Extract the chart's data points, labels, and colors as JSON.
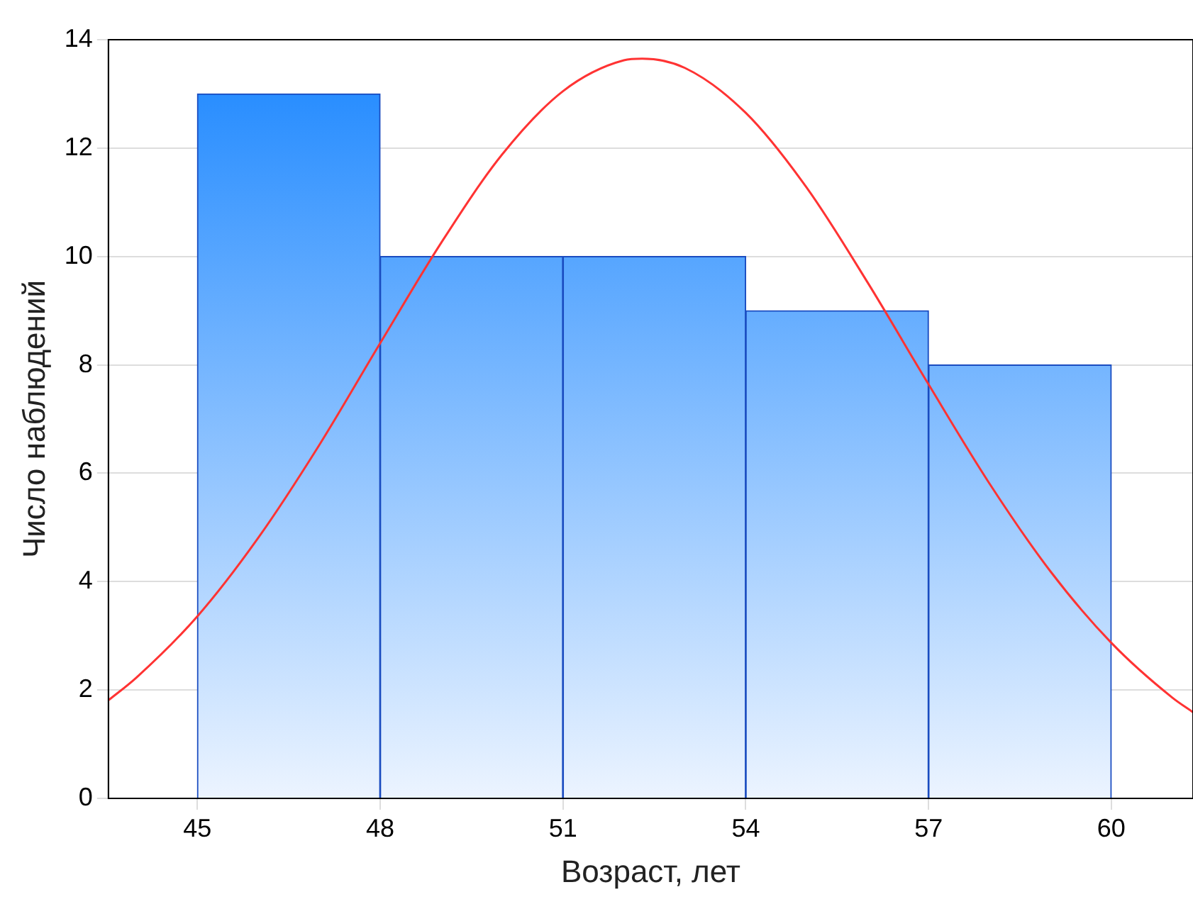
{
  "chart_data": {
    "type": "histogram",
    "xlabel": "Возраст, лет",
    "ylabel": "Число наблюдений",
    "bins": [
      45,
      48,
      51,
      54,
      57,
      60
    ],
    "values": [
      13,
      10,
      10,
      9,
      8
    ],
    "color": "#1e88ff",
    "series": [
      {
        "type": "line",
        "color": "#ff3333",
        "x": [
          43.54,
          44,
          45,
          46,
          47,
          48,
          49,
          50,
          51,
          52,
          52.3,
          53,
          54,
          55,
          56,
          57,
          58,
          59,
          60,
          61,
          61.34
        ],
        "values": [
          1.81,
          2.23,
          3.36,
          4.81,
          6.52,
          8.4,
          10.25,
          11.88,
          13.05,
          13.62,
          13.65,
          13.48,
          12.65,
          11.27,
          9.52,
          7.64,
          5.81,
          4.19,
          2.87,
          1.86,
          1.59
        ]
      }
    ],
    "xlim": [
      43.54,
      61.34
    ],
    "xticks": [
      45,
      48,
      51,
      54,
      57,
      60
    ],
    "ylim": [
      0,
      14
    ],
    "yticks": [
      0,
      2,
      4,
      6,
      8,
      10,
      12,
      14
    ],
    "grid": "y",
    "legend": false,
    "marker": "none",
    "line_style": "solid"
  }
}
